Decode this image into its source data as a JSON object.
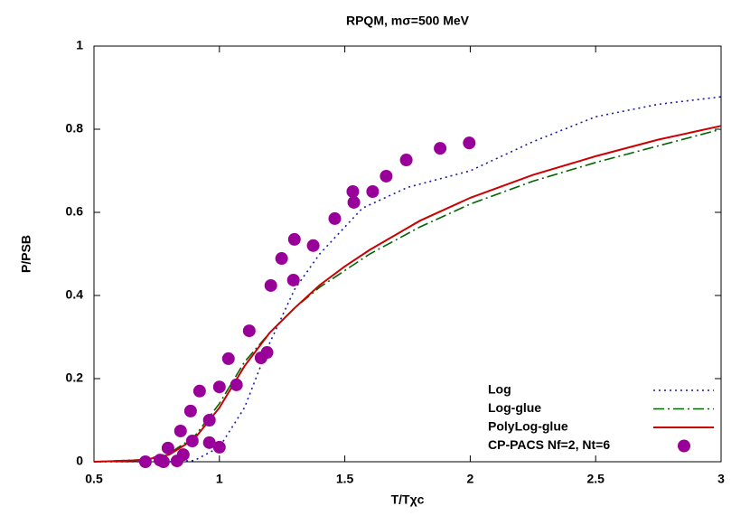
{
  "chart_data": {
    "type": "line",
    "title": "RPQM, mσ=500 MeV",
    "x_label": "T/Tχc",
    "y_label": "P/PSB",
    "xlim": [
      0.5,
      3
    ],
    "ylim": [
      0,
      1
    ],
    "xticks": [
      0.5,
      1,
      1.5,
      2,
      2.5,
      3
    ],
    "yticks": [
      0,
      0.2,
      0.4,
      0.6,
      0.8,
      1
    ],
    "legend": "lower right",
    "series": [
      {
        "name": "Log",
        "type": "line",
        "dash": "dotted",
        "color": "#1c1c9c",
        "x": [
          0.5,
          0.8,
          0.9,
          1.0,
          1.1,
          1.2,
          1.3,
          1.4,
          1.57,
          1.75,
          2.0,
          2.25,
          2.5,
          2.75,
          3.0
        ],
        "values": [
          0,
          0,
          0.003,
          0.035,
          0.13,
          0.285,
          0.415,
          0.5,
          0.61,
          0.66,
          0.7,
          0.77,
          0.83,
          0.86,
          0.878
        ]
      },
      {
        "name": "Log-glue",
        "type": "line",
        "dash": "dashdot",
        "color": "#006400",
        "x": [
          0.5,
          0.7,
          0.8,
          0.9,
          1.0,
          1.1,
          1.2,
          1.3,
          1.4,
          1.5,
          1.6,
          1.8,
          2.0,
          2.25,
          2.5,
          2.75,
          3.0
        ],
        "values": [
          0,
          0.005,
          0.02,
          0.06,
          0.14,
          0.24,
          0.31,
          0.37,
          0.42,
          0.46,
          0.5,
          0.565,
          0.62,
          0.675,
          0.72,
          0.76,
          0.8
        ]
      },
      {
        "name": "PolyLog-glue",
        "type": "line",
        "dash": "solid",
        "color": "#cc0000",
        "x": [
          0.5,
          0.7,
          0.8,
          0.9,
          1.0,
          1.1,
          1.2,
          1.3,
          1.4,
          1.5,
          1.6,
          1.8,
          2.0,
          2.25,
          2.5,
          2.75,
          3.0
        ],
        "values": [
          0,
          0.004,
          0.017,
          0.055,
          0.13,
          0.23,
          0.31,
          0.37,
          0.425,
          0.47,
          0.51,
          0.58,
          0.635,
          0.69,
          0.735,
          0.775,
          0.808
        ]
      },
      {
        "name": "CP-PACS Nf=2, Nt=6",
        "type": "scatter",
        "color": "#990099",
        "x": [
          0.705,
          0.763,
          0.777,
          0.795,
          0.831,
          0.845,
          0.856,
          0.885,
          0.892,
          0.921,
          0.96,
          0.96,
          1.0,
          1.0,
          1.036,
          1.068,
          1.119,
          1.166,
          1.19,
          1.205,
          1.248,
          1.295,
          1.299,
          1.374,
          1.46,
          1.532,
          1.536,
          1.611,
          1.665,
          1.745,
          1.88,
          1.996
        ],
        "values": [
          0.0,
          0.004,
          0.0,
          0.033,
          0.002,
          0.074,
          0.017,
          0.122,
          0.05,
          0.17,
          0.1,
          0.046,
          0.18,
          0.035,
          0.248,
          0.185,
          0.315,
          0.25,
          0.263,
          0.424,
          0.489,
          0.437,
          0.535,
          0.52,
          0.585,
          0.65,
          0.624,
          0.65,
          0.687,
          0.726,
          0.754,
          0.767
        ]
      }
    ]
  }
}
